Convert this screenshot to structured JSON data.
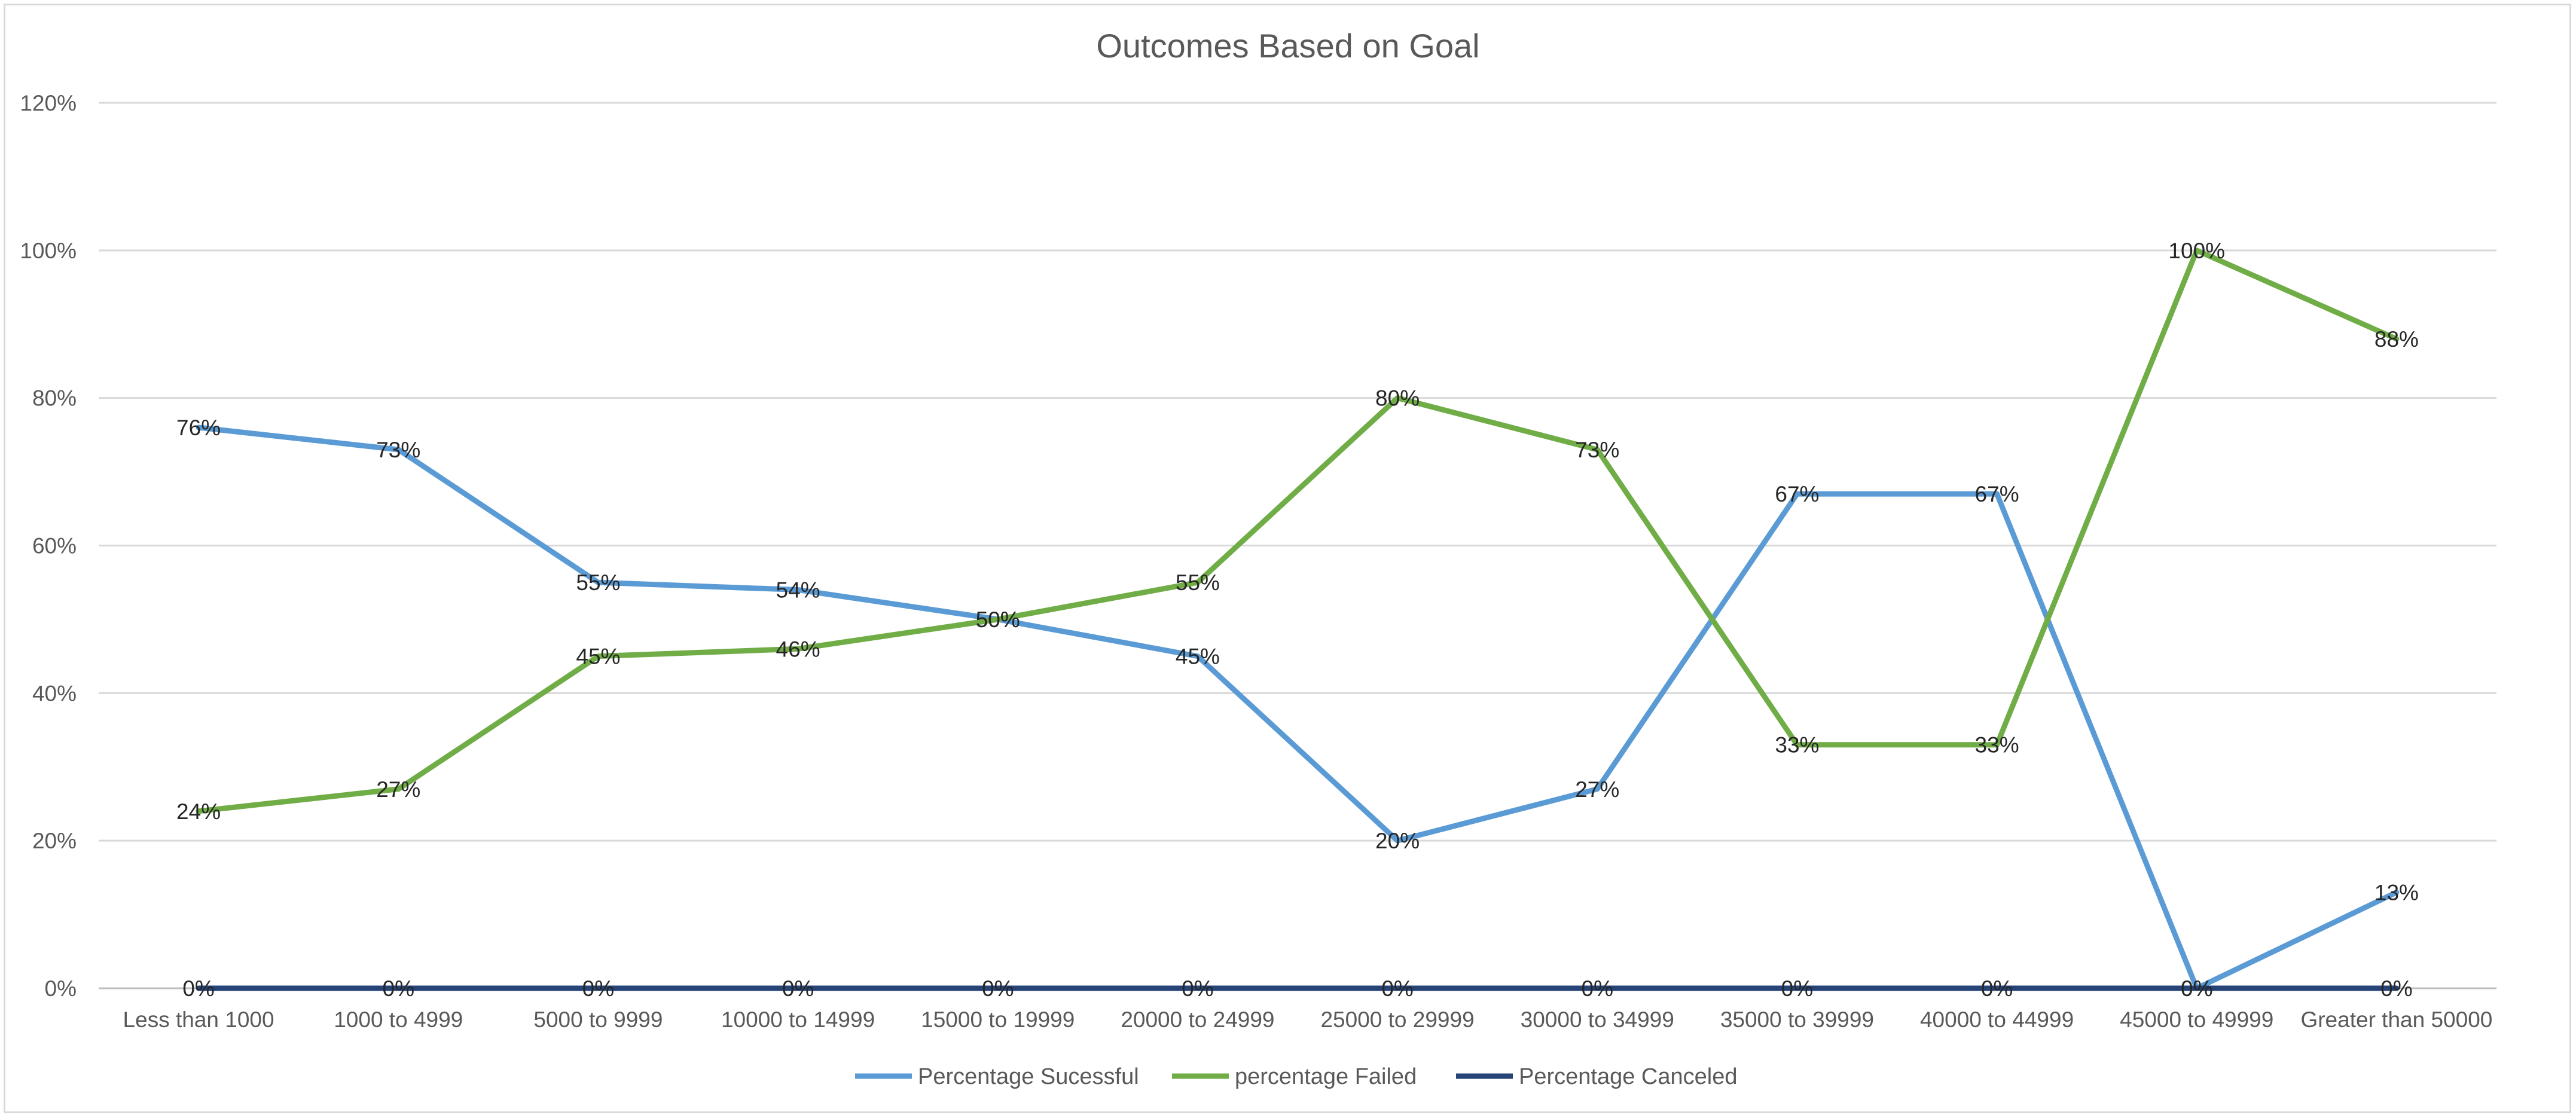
{
  "chart_data": {
    "type": "line",
    "title": "Outcomes Based on Goal",
    "xlabel": "",
    "ylabel": "",
    "ylim": [
      0,
      1.2
    ],
    "ytick_step": 0.2,
    "grid": true,
    "legend_position": "bottom",
    "categories": [
      "Less than 1000",
      "1000 to 4999",
      "5000 to 9999",
      "10000 to 14999",
      "15000 to 19999",
      "20000 to 24999",
      "25000 to 29999",
      "30000 to 34999",
      "35000 to 39999",
      "40000 to 44999",
      "45000 to 49999",
      "Greater than 50000"
    ],
    "series": [
      {
        "name": "Percentage Sucessful",
        "color": "#5b9bd5",
        "values": [
          0.76,
          0.73,
          0.55,
          0.54,
          0.5,
          0.45,
          0.2,
          0.27,
          0.67,
          0.67,
          0.0,
          0.13
        ],
        "labels": [
          "76%",
          "73%",
          "55%",
          "54%",
          "50%",
          "45%",
          "20%",
          "27%",
          "67%",
          "67%",
          "0%",
          "13%"
        ]
      },
      {
        "name": "percentage Failed",
        "color": "#70ad47",
        "values": [
          0.24,
          0.27,
          0.45,
          0.46,
          0.5,
          0.55,
          0.8,
          0.73,
          0.33,
          0.33,
          1.0,
          0.88
        ],
        "labels": [
          "24%",
          "27%",
          "45%",
          "46%",
          "50%",
          "55%",
          "80%",
          "73%",
          "33%",
          "33%",
          "100%",
          "88%"
        ]
      },
      {
        "name": "Percentage Canceled",
        "color": "#264478",
        "values": [
          0,
          0,
          0,
          0,
          0,
          0,
          0,
          0,
          0,
          0,
          0,
          0
        ],
        "labels": [
          "0%",
          "0%",
          "0%",
          "0%",
          "0%",
          "0%",
          "0%",
          "0%",
          "0%",
          "0%",
          "0%",
          "0%"
        ]
      }
    ]
  }
}
